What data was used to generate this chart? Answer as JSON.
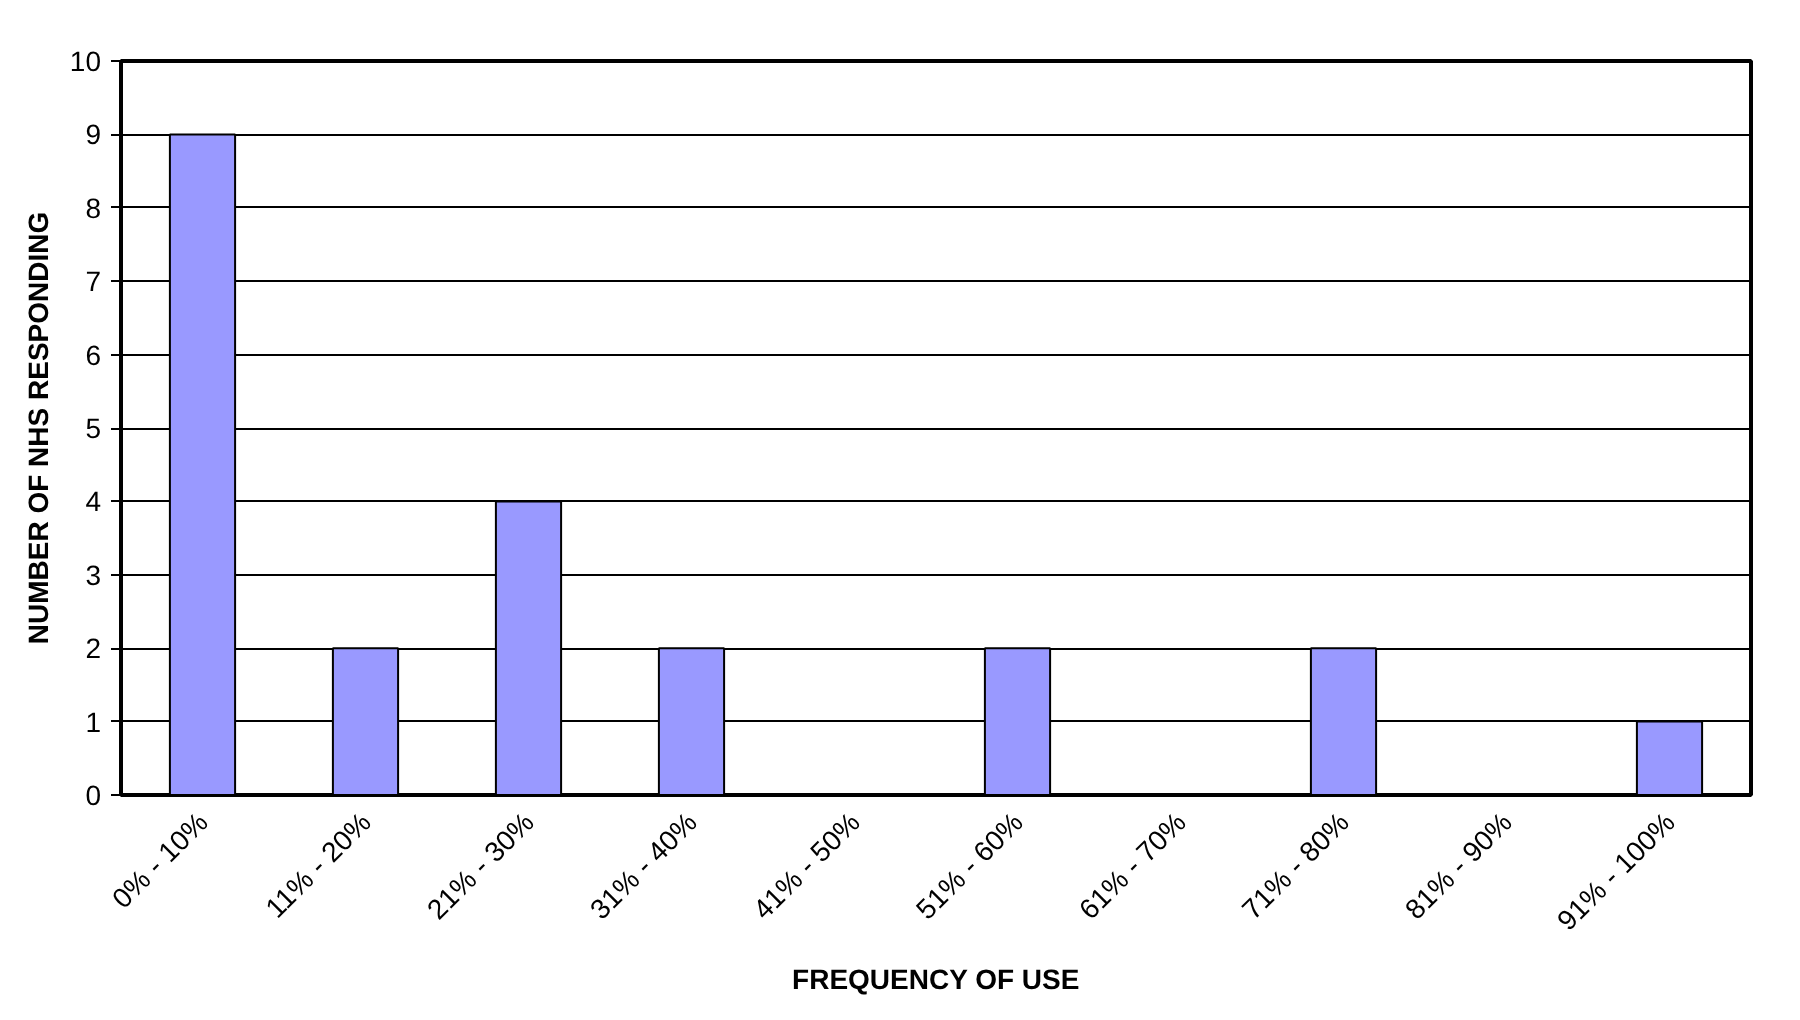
{
  "chart_data": {
    "type": "bar",
    "xlabel": "FREQUENCY OF USE",
    "ylabel": "NUMBER OF NHS RESPONDING",
    "categories": [
      "0% - 10%",
      "11% - 20%",
      "21% - 30%",
      "31% - 40%",
      "41% - 50%",
      "51% - 60%",
      "61% - 70%",
      "71% - 80%",
      "81% - 90%",
      "91% - 100%"
    ],
    "values": [
      9,
      2,
      4,
      2,
      0,
      2,
      0,
      2,
      0,
      1
    ],
    "color": "#9999ff",
    "ylim": [
      0,
      10
    ],
    "yticks": [
      0,
      1,
      2,
      3,
      4,
      5,
      6,
      7,
      8,
      9,
      10
    ],
    "grid": "y"
  }
}
